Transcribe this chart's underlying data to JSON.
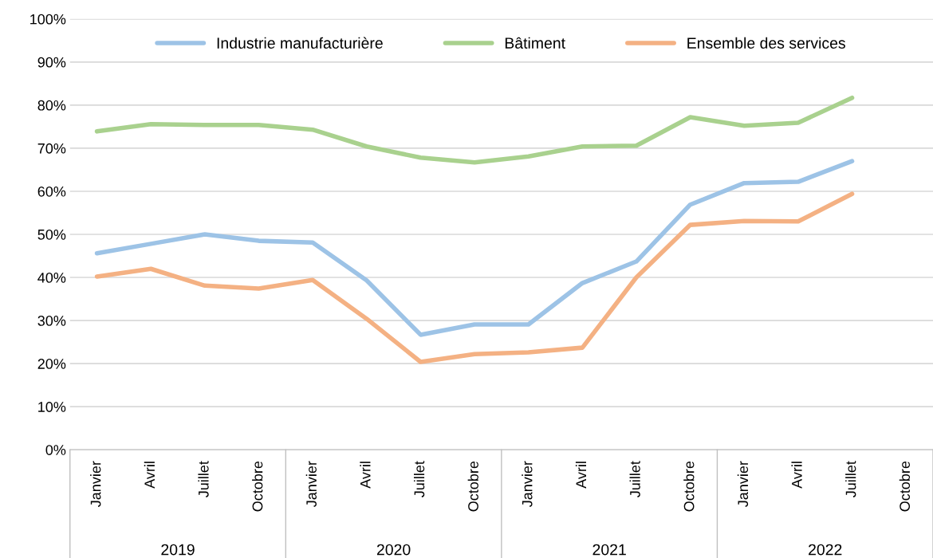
{
  "chart_data": {
    "type": "line",
    "categories": [
      "Janvier",
      "Avril",
      "Juillet",
      "Octobre",
      "Janvier",
      "Avril",
      "Juillet",
      "Octobre",
      "Janvier",
      "Avril",
      "Juillet",
      "Octobre",
      "Janvier",
      "Avril",
      "Juillet",
      "Octobre"
    ],
    "series": [
      {
        "name": "Industrie manufacturière",
        "color": "#9dc3e6",
        "values": [
          45.6,
          47.8,
          50.0,
          48.5,
          48.1,
          39.3,
          26.7,
          29.1,
          29.1,
          38.7,
          43.7,
          56.9,
          61.9,
          62.2,
          67.0,
          null
        ]
      },
      {
        "name": "Bâtiment",
        "color": "#a9d18e",
        "values": [
          73.9,
          75.6,
          75.4,
          75.4,
          74.3,
          70.4,
          67.8,
          66.7,
          68.1,
          70.4,
          70.6,
          77.2,
          75.2,
          75.9,
          81.7,
          null
        ]
      },
      {
        "name": "Ensemble des services",
        "color": "#f4b183",
        "values": [
          40.2,
          42.0,
          38.1,
          37.4,
          39.4,
          30.4,
          20.4,
          22.2,
          22.6,
          23.7,
          40.0,
          52.2,
          53.1,
          53.0,
          59.4,
          null
        ]
      }
    ],
    "annotations": [
      "2019",
      "2020",
      "2021",
      "2022"
    ],
    "ylim": [
      0,
      100
    ],
    "yticks": [
      {
        "value": 0,
        "label": "0%"
      },
      {
        "value": 10,
        "label": "10%"
      },
      {
        "value": 20,
        "label": "20%"
      },
      {
        "value": 30,
        "label": "30%"
      },
      {
        "value": 40,
        "label": "40%"
      },
      {
        "value": 50,
        "label": "50%"
      },
      {
        "value": 60,
        "label": "60%"
      },
      {
        "value": 70,
        "label": "70%"
      },
      {
        "value": 80,
        "label": "80%"
      },
      {
        "value": 90,
        "label": "90%"
      },
      {
        "value": 100,
        "label": "100%"
      }
    ],
    "grid": "y",
    "legend": "top",
    "marker": "none",
    "line_style": "solid"
  }
}
